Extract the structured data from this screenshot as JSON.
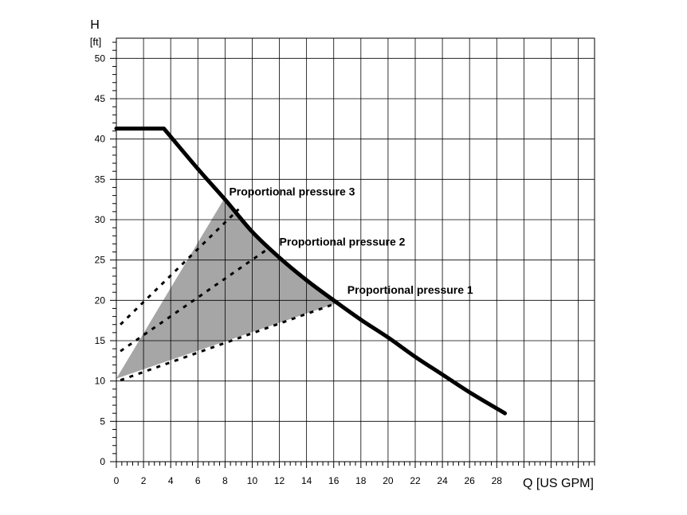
{
  "chart_data": {
    "type": "line",
    "title": "",
    "xlabel": "Q [US GPM]",
    "ylabel": "H",
    "yunit": "[ft]",
    "xlim": [
      0,
      35.2
    ],
    "ylim": [
      0,
      52.5
    ],
    "xticks": [
      0,
      2,
      4,
      6,
      8,
      10,
      12,
      14,
      16,
      18,
      20,
      22,
      24,
      26,
      28
    ],
    "yticks": [
      0,
      5,
      10,
      15,
      20,
      25,
      30,
      35,
      40,
      45,
      50
    ],
    "grid": true,
    "max_curve": {
      "x": [
        0,
        3.5,
        6,
        8,
        10,
        12,
        14,
        16,
        18,
        20,
        22,
        24,
        26,
        28.6
      ],
      "y": [
        41.3,
        41.3,
        36.3,
        32.5,
        28.5,
        25.3,
        22.5,
        20.0,
        17.6,
        15.4,
        13.0,
        10.8,
        8.6,
        6.0
      ]
    },
    "shaded_region": {
      "x": [
        0,
        7.9,
        8.5,
        10,
        12,
        14,
        16.3,
        0
      ],
      "y": [
        10.3,
        32.5,
        31.5,
        28.5,
        25.3,
        22.5,
        19.7,
        10.3
      ]
    },
    "series": [
      {
        "name": "Proportional pressure 1",
        "x": [
          0.3,
          16.3
        ],
        "y": [
          10.1,
          19.7
        ]
      },
      {
        "name": "Proportional pressure 2",
        "x": [
          0.3,
          11.0
        ],
        "y": [
          13.7,
          26.2
        ]
      },
      {
        "name": "Proportional pressure 3",
        "x": [
          0.3,
          9.0
        ],
        "y": [
          17.0,
          31.3
        ]
      }
    ],
    "annotations": [
      {
        "text": "Proportional pressure 3",
        "x": 8.3,
        "y": 33.0
      },
      {
        "text": "Proportional pressure 2",
        "x": 12.0,
        "y": 26.8
      },
      {
        "text": "Proportional pressure 1",
        "x": 17.0,
        "y": 20.8
      }
    ],
    "colors": {
      "shade": "#a6a6a6",
      "grid": "#000000",
      "curve": "#000000"
    }
  }
}
